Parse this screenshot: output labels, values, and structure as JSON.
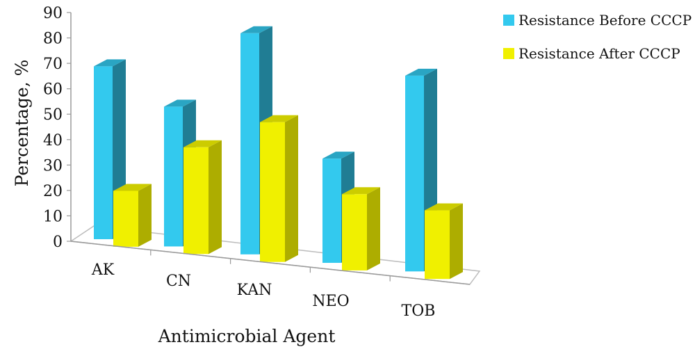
{
  "chart_data": {
    "type": "bar",
    "categories": [
      "AK",
      "CN",
      "KAN",
      "NEO",
      "TOB"
    ],
    "series": [
      {
        "name": "Resistance Before CCCP",
        "values": [
          68,
          55,
          87,
          41,
          77
        ],
        "color": "#33c9ee"
      },
      {
        "name": "Resistance After CCCP",
        "values": [
          22,
          42,
          55,
          30,
          27
        ],
        "color": "#f0f000"
      }
    ],
    "title": "",
    "xlabel": "Antimicrobial Agent",
    "ylabel": "Percentage, %",
    "ylim": [
      0,
      90
    ],
    "yticks": [
      0,
      10,
      20,
      30,
      40,
      50,
      60,
      70,
      80,
      90
    ],
    "grid": false,
    "legend_position": "top-right",
    "style": "3d-clustered-column"
  }
}
